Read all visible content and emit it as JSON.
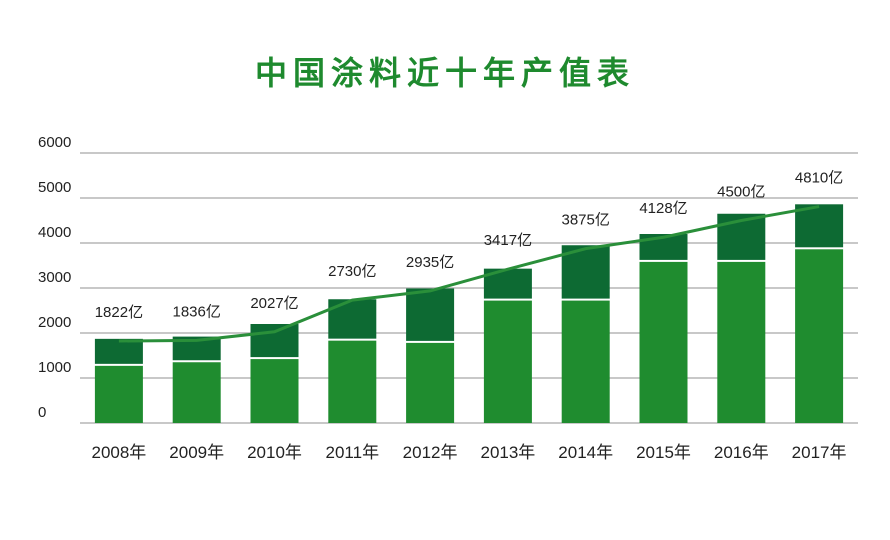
{
  "chart_data": {
    "type": "bar",
    "title": "中国涂料近十年产值表",
    "categories": [
      "2008年",
      "2009年",
      "2010年",
      "2011年",
      "2012年",
      "2013年",
      "2014年",
      "2015年",
      "2016年",
      "2017年"
    ],
    "series": [
      {
        "values": [
          1270,
          1350,
          1420,
          1830,
          1780,
          2720,
          2720,
          3580,
          3580,
          3860
        ],
        "color": "#1f8c2f"
      },
      {
        "values": [
          600,
          570,
          780,
          920,
          1210,
          710,
          1230,
          620,
          1070,
          1000
        ],
        "color": "#0d6a33"
      }
    ],
    "line": {
      "values": [
        1822,
        1836,
        2027,
        2730,
        2935,
        3417,
        3875,
        4128,
        4500,
        4810
      ],
      "labels": [
        "1822亿",
        "1836亿",
        "2027亿",
        "2730亿",
        "2935亿",
        "3417亿",
        "3875亿",
        "4128亿",
        "4500亿",
        "4810亿"
      ],
      "color": "#2a8f3a"
    },
    "y_ticks": [
      "0",
      "1000",
      "2000",
      "3000",
      "4000",
      "5000",
      "6000"
    ],
    "ylim": [
      0,
      6000
    ],
    "grid": true,
    "legend": false
  }
}
